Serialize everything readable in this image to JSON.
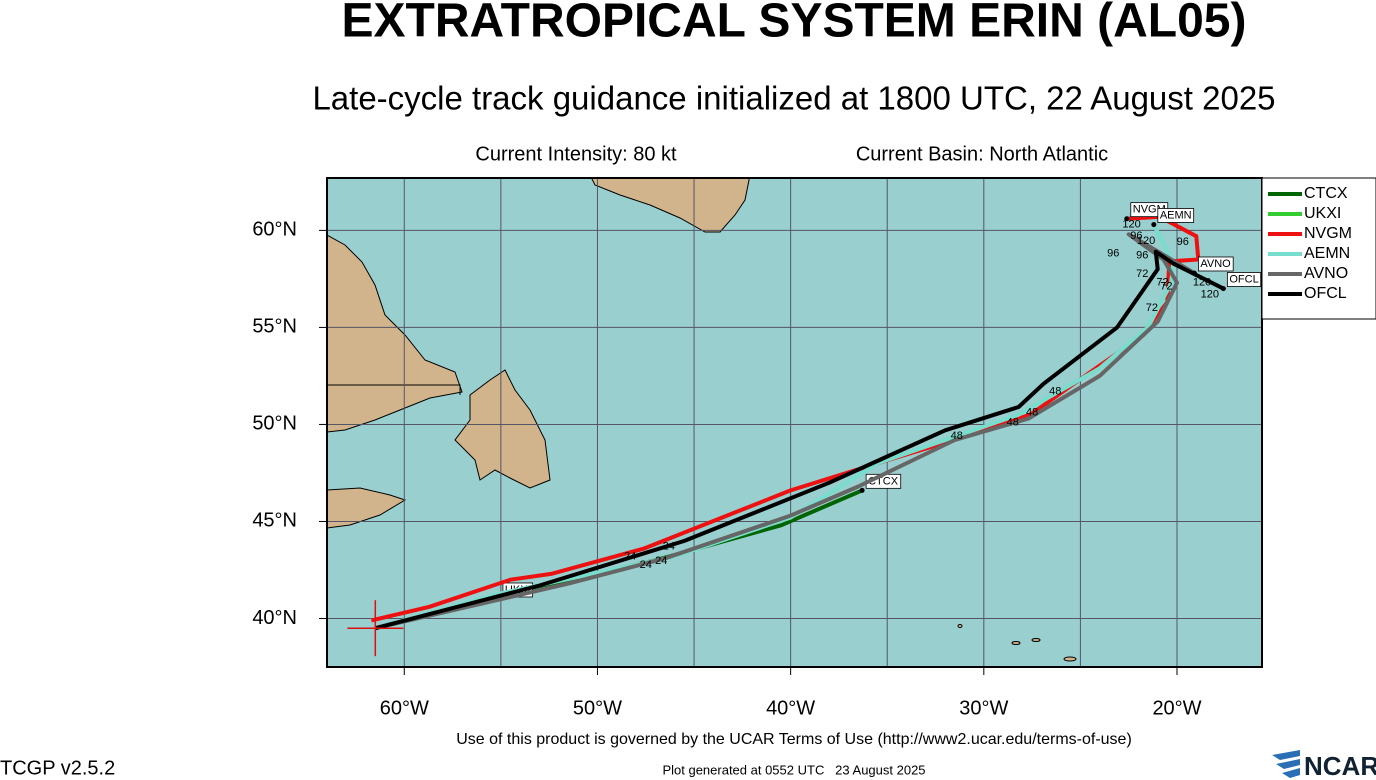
{
  "chart_data": {
    "type": "map-track",
    "title": "EXTRATROPICAL SYSTEM ERIN (AL05)",
    "subtitle": "Late-cycle track guidance initialized at 1800 UTC, 22 August 2025",
    "intensity": "Current Intensity: 80 kt",
    "basin": "Current Basin: North Atlantic",
    "xlim": [
      -64,
      -15.6
    ],
    "ylim": [
      37.5,
      62.7
    ],
    "xticks": [
      {
        "value": -60,
        "label": "60°W"
      },
      {
        "value": -50,
        "label": "50°W"
      },
      {
        "value": -40,
        "label": "40°W"
      },
      {
        "value": -30,
        "label": "30°W"
      },
      {
        "value": -20,
        "label": "20°W"
      }
    ],
    "x_minor_ticks": [
      -55,
      -45,
      -35,
      -25
    ],
    "yticks": [
      {
        "value": 40,
        "label": "40°N"
      },
      {
        "value": 45,
        "label": "45°N"
      },
      {
        "value": 50,
        "label": "50°N"
      },
      {
        "value": 55,
        "label": "55°N"
      },
      {
        "value": 60,
        "label": "60°N"
      }
    ],
    "grid": true,
    "series": [
      {
        "name": "CTCX",
        "color": "#006400",
        "x": [
          -61.5,
          -56,
          -47,
          -40.5,
          -36.3
        ],
        "values": [
          39.5,
          41.0,
          43.0,
          44.8,
          46.6
        ]
      },
      {
        "name": "UKXI",
        "color": "#33cc33",
        "x": [
          -61.5,
          -55.1
        ],
        "values": [
          39.5,
          41.0
        ]
      },
      {
        "name": "NVGM",
        "color": "#ee1111",
        "x": [
          -61.7,
          -58.7,
          -54.5,
          -52.4,
          -47.6,
          -40,
          -35.5,
          -31.2,
          -27.6,
          -24.2,
          -21.9,
          -20.5,
          -20.4,
          -18.9,
          -19.0,
          -20.9,
          -22.6
        ],
        "values": [
          39.9,
          40.6,
          42.0,
          42.3,
          43.6,
          46.6,
          48.0,
          49.3,
          50.5,
          52.9,
          54.5,
          56.3,
          58.4,
          58.5,
          59.7,
          60.7,
          60.6
        ]
      },
      {
        "name": "AEMN",
        "color": "#77ddcc",
        "x": [
          -61.5,
          -55,
          -46,
          -40,
          -35.5,
          -28.2,
          -24,
          -21.5,
          -20.3,
          -20.2,
          -20.8,
          -21.2
        ],
        "values": [
          39.5,
          41.3,
          43.2,
          45.2,
          48.0,
          50.5,
          52.9,
          55.0,
          57.3,
          58.3,
          59.5,
          60.3
        ]
      },
      {
        "name": "AVNO",
        "color": "#666666",
        "x": [
          -61.5,
          -51.5,
          -46.5,
          -40,
          -36.5,
          -31.5,
          -27.7,
          -24,
          -21,
          -20,
          -20.7,
          -22.5,
          -19.1
        ],
        "values": [
          39.5,
          41.8,
          43.1,
          45.3,
          46.8,
          49.2,
          50.3,
          52.5,
          55.3,
          57.3,
          58.5,
          59.8,
          57.8
        ]
      },
      {
        "name": "OFCL",
        "color": "#000000",
        "x": [
          -61.5,
          -53.0,
          -45.5,
          -38.0,
          -32.0,
          -28.2,
          -26.9,
          -23.1,
          -21.0,
          -21.1,
          -20.2,
          -17.6
        ],
        "values": [
          39.5,
          41.7,
          44.0,
          47.0,
          49.7,
          50.9,
          52.1,
          55.0,
          58.0,
          58.9,
          58.3,
          57.0
        ]
      }
    ],
    "hour_labels": [
      {
        "text": "24",
        "lon": -48.3,
        "lat": 43.2
      },
      {
        "text": "24",
        "lon": -46.3,
        "lat": 43.7
      },
      {
        "text": "24",
        "lon": -47.5,
        "lat": 42.75
      },
      {
        "text": "24",
        "lon": -46.7,
        "lat": 42.95
      },
      {
        "text": "48",
        "lon": -31.4,
        "lat": 49.4
      },
      {
        "text": "48",
        "lon": -27.5,
        "lat": 50.6
      },
      {
        "text": "48",
        "lon": -28.5,
        "lat": 50.1
      },
      {
        "text": "48",
        "lon": -26.3,
        "lat": 51.7
      },
      {
        "text": "72",
        "lon": -21.8,
        "lat": 57.75
      },
      {
        "text": "72",
        "lon": -20.75,
        "lat": 57.3
      },
      {
        "text": "72",
        "lon": -20.55,
        "lat": 57.1
      },
      {
        "text": "72",
        "lon": -21.3,
        "lat": 56.0
      },
      {
        "text": "96",
        "lon": -23.3,
        "lat": 58.8
      },
      {
        "text": "96",
        "lon": -21.8,
        "lat": 58.7
      },
      {
        "text": "96",
        "lon": -19.7,
        "lat": 59.4
      },
      {
        "text": "96",
        "lon": -22.1,
        "lat": 59.7
      },
      {
        "text": "120",
        "lon": -22.35,
        "lat": 60.3
      },
      {
        "text": "120",
        "lon": -21.6,
        "lat": 59.45
      },
      {
        "text": "120",
        "lon": -18.7,
        "lat": 57.3
      },
      {
        "text": "120",
        "lon": -18.3,
        "lat": 56.7
      }
    ],
    "terms": "Use of this product is governed by the UCAR Terms of Use (http://www2.ucar.edu/terms-of-use)",
    "version": "TCGP v2.5.2",
    "generated": "Plot generated at 0552 UTC   23 August 2025",
    "logo": "NCAR"
  }
}
